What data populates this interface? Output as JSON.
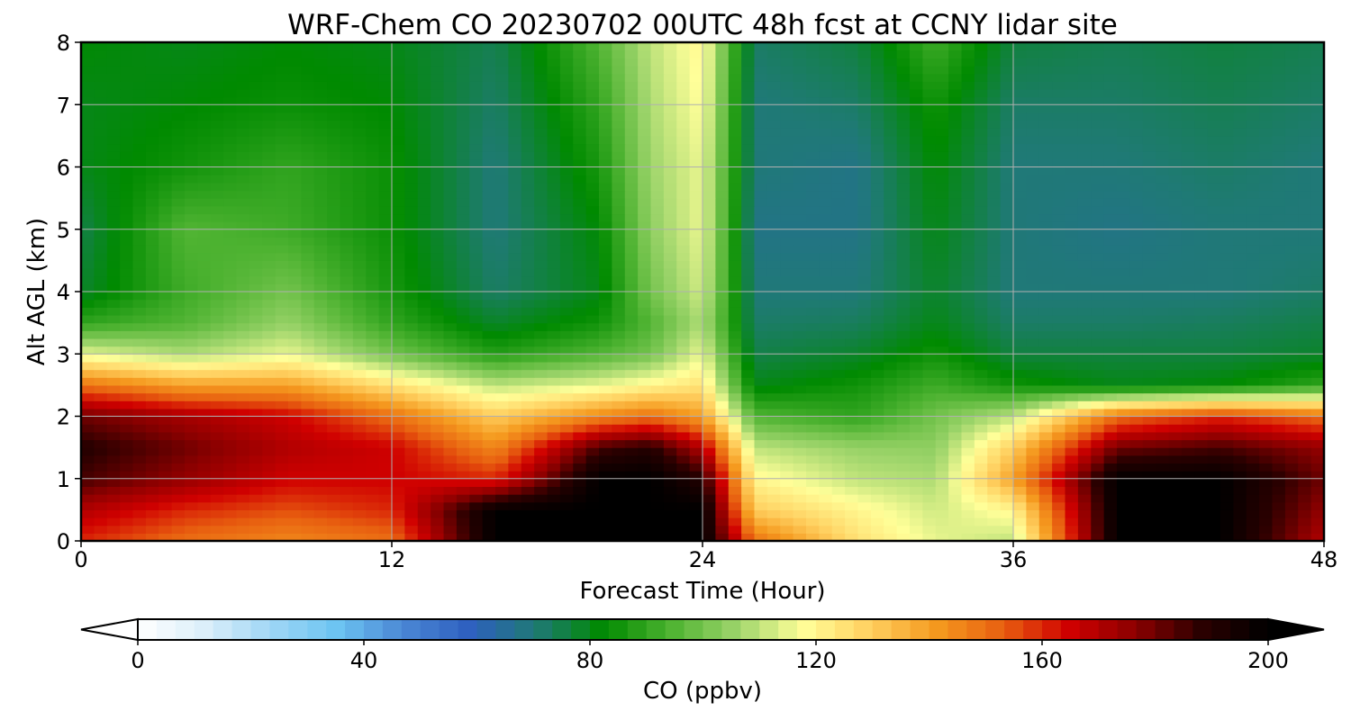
{
  "chart_data": {
    "type": "heatmap",
    "title": "WRF-Chem CO  20230702 00UTC 48h fcst at CCNY lidar site",
    "xlabel": "Forecast Time (Hour)",
    "ylabel": "Alt AGL (km)",
    "xlim": [
      0,
      48
    ],
    "ylim": [
      0,
      8
    ],
    "x_ticks": [
      0,
      12,
      24,
      36,
      48
    ],
    "y_ticks": [
      0,
      1,
      2,
      3,
      4,
      5,
      6,
      7,
      8
    ],
    "grid": true,
    "x_hours": [
      0,
      4,
      8,
      12,
      16,
      20,
      22,
      24,
      26,
      30,
      33,
      36,
      40,
      44,
      48
    ],
    "y_km": [
      0,
      0.5,
      1,
      1.5,
      2,
      2.5,
      3,
      3.5,
      4,
      5,
      6,
      7,
      8
    ],
    "z_ppbv_rows_by_altitude": [
      [
        160,
        150,
        145,
        150,
        200,
        200,
        200,
        200,
        150,
        125,
        115,
        110,
        200,
        200,
        170
      ],
      [
        170,
        160,
        155,
        160,
        200,
        200,
        200,
        200,
        130,
        120,
        112,
        120,
        200,
        200,
        175
      ],
      [
        185,
        175,
        165,
        165,
        160,
        200,
        200,
        190,
        120,
        110,
        108,
        140,
        200,
        200,
        180
      ],
      [
        190,
        180,
        170,
        165,
        145,
        185,
        190,
        170,
        110,
        105,
        104,
        130,
        180,
        185,
        175
      ],
      [
        180,
        172,
        165,
        150,
        130,
        145,
        150,
        140,
        95,
        90,
        100,
        110,
        150,
        160,
        150
      ],
      [
        150,
        140,
        140,
        125,
        110,
        115,
        120,
        125,
        80,
        85,
        92,
        85,
        80,
        82,
        90
      ],
      [
        115,
        108,
        115,
        100,
        88,
        95,
        100,
        115,
        75,
        78,
        85,
        76,
        76,
        76,
        78
      ],
      [
        90,
        95,
        105,
        90,
        78,
        85,
        95,
        108,
        72,
        73,
        80,
        72,
        72,
        73,
        75
      ],
      [
        78,
        92,
        100,
        86,
        72,
        80,
        100,
        112,
        70,
        70,
        78,
        70,
        70,
        70,
        72
      ],
      [
        75,
        95,
        92,
        84,
        70,
        82,
        104,
        115,
        68,
        68,
        80,
        70,
        68,
        70,
        70
      ],
      [
        80,
        85,
        90,
        84,
        70,
        86,
        106,
        115,
        70,
        68,
        82,
        70,
        70,
        72,
        70
      ],
      [
        80,
        82,
        84,
        82,
        72,
        90,
        108,
        118,
        70,
        72,
        85,
        72,
        72,
        74,
        72
      ],
      [
        82,
        80,
        82,
        80,
        74,
        95,
        110,
        120,
        72,
        76,
        92,
        76,
        74,
        76,
        74
      ]
    ],
    "colorbar": {
      "label": "CO  (ppbv)",
      "min": 0,
      "max": 200,
      "ticks": [
        0,
        40,
        80,
        120,
        160,
        200
      ],
      "extend": "both",
      "colors": [
        "#ffffff",
        "#dceffa",
        "#9fd6f5",
        "#6cc4f2",
        "#4a86d4",
        "#2e5fbf",
        "#1f7a74",
        "#008a00",
        "#4cb230",
        "#9cd46a",
        "#ffff99",
        "#ffd060",
        "#f59a1f",
        "#e86010",
        "#d00000",
        "#8b0000",
        "#2a0000",
        "#000000"
      ]
    }
  }
}
